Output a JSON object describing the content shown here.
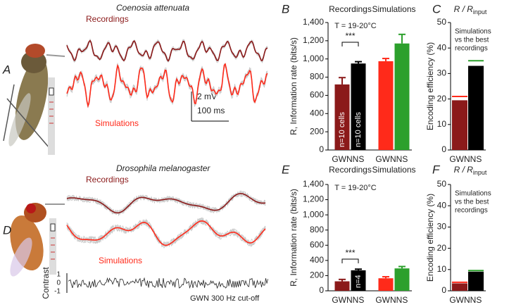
{
  "figure": {
    "top": {
      "panel": "A",
      "species": "Coenosia attenuata",
      "recordings": "Recordings",
      "simulations": "Simulations",
      "scale_v": "2 mV",
      "scale_h": "100 ms"
    },
    "bottom": {
      "panel": "D",
      "species": "Drosophila melanogaster",
      "recordings": "Recordings",
      "simulations": "Simulations",
      "contrast": "Contrast",
      "contrast_ticks": [
        "1",
        "0",
        "-1"
      ],
      "stimulus": "GWN 300 Hz cut-off"
    }
  },
  "chart_data": [
    {
      "type": "bar",
      "panel": "B",
      "group_labels": [
        "Recordings",
        "Simulations"
      ],
      "annotation": "T = 19-20°C",
      "ylabel": "R, Information rate (bits/s)",
      "categories": [
        "GWN",
        "NS",
        "GWN",
        "NS"
      ],
      "values": [
        720,
        950,
        975,
        1170
      ],
      "errors": [
        75,
        20,
        30,
        100
      ],
      "colors": [
        "#8b1a1a",
        "#000000",
        "#ff2a1a",
        "#2ca02c"
      ],
      "ylim": [
        0,
        1400
      ],
      "yticks": [
        0,
        200,
        400,
        600,
        800,
        {
          "value": 1000,
          "label": "1,000"
        },
        {
          "value": 1200,
          "label": "1,200"
        },
        {
          "value": 1400,
          "label": "1,400"
        }
      ],
      "bar_annotations": [
        {
          "index": 0,
          "text": "n=10 cells"
        },
        {
          "index": 1,
          "text": "n=10 cells"
        }
      ],
      "significance": {
        "text": "***",
        "between": [
          0,
          1
        ]
      }
    },
    {
      "type": "bar",
      "panel": "C",
      "title": "R / R",
      "title_subscript": "input",
      "note": [
        "Simulations",
        "vs the best",
        "recordings"
      ],
      "ylabel": "Encoding efficiency (%)",
      "categories": [
        "GWN",
        "NS"
      ],
      "values": [
        19.5,
        33
      ],
      "colors": [
        "#8b1a1a",
        "#000000"
      ],
      "sim_values": [
        21,
        35
      ],
      "sim_colors": [
        "#ff2a1a",
        "#2ca02c"
      ],
      "ylim": [
        0,
        50
      ],
      "yticks": [
        0,
        10,
        20,
        30,
        40,
        50
      ]
    },
    {
      "type": "bar",
      "panel": "E",
      "group_labels": [
        "Recordings",
        "Simulations"
      ],
      "annotation": "T = 19-20°C",
      "ylabel": "R, Information rate (bits/s)",
      "categories": [
        "GWN",
        "NS",
        "GWN",
        "NS"
      ],
      "values": [
        125,
        270,
        165,
        295
      ],
      "errors": [
        25,
        15,
        20,
        25
      ],
      "colors": [
        "#8b1a1a",
        "#000000",
        "#ff2a1a",
        "#2ca02c"
      ],
      "ylim": [
        0,
        1400
      ],
      "yticks": [
        0,
        200,
        400,
        600,
        800,
        {
          "value": 1000,
          "label": "1,000"
        },
        {
          "value": 1200,
          "label": "1,200"
        },
        {
          "value": 1400,
          "label": "1,400"
        }
      ],
      "bar_annotations": [
        {
          "index": 1,
          "text": "n=4"
        }
      ],
      "significance": {
        "text": "***",
        "between": [
          0,
          1
        ]
      }
    },
    {
      "type": "bar",
      "panel": "F",
      "title": "R / R",
      "title_subscript": "input",
      "note": [
        "Simulations",
        "vs the best",
        "recordings"
      ],
      "ylabel": "Encoding efficiency (%)",
      "categories": [
        "GWN",
        "NS"
      ],
      "values": [
        3.5,
        9
      ],
      "colors": [
        "#8b1a1a",
        "#000000"
      ],
      "sim_values": [
        4,
        9.5
      ],
      "sim_colors": [
        "#ff2a1a",
        "#2ca02c"
      ],
      "ylim": [
        0,
        50
      ],
      "yticks": [
        0,
        10,
        20,
        30,
        40,
        50
      ]
    }
  ]
}
